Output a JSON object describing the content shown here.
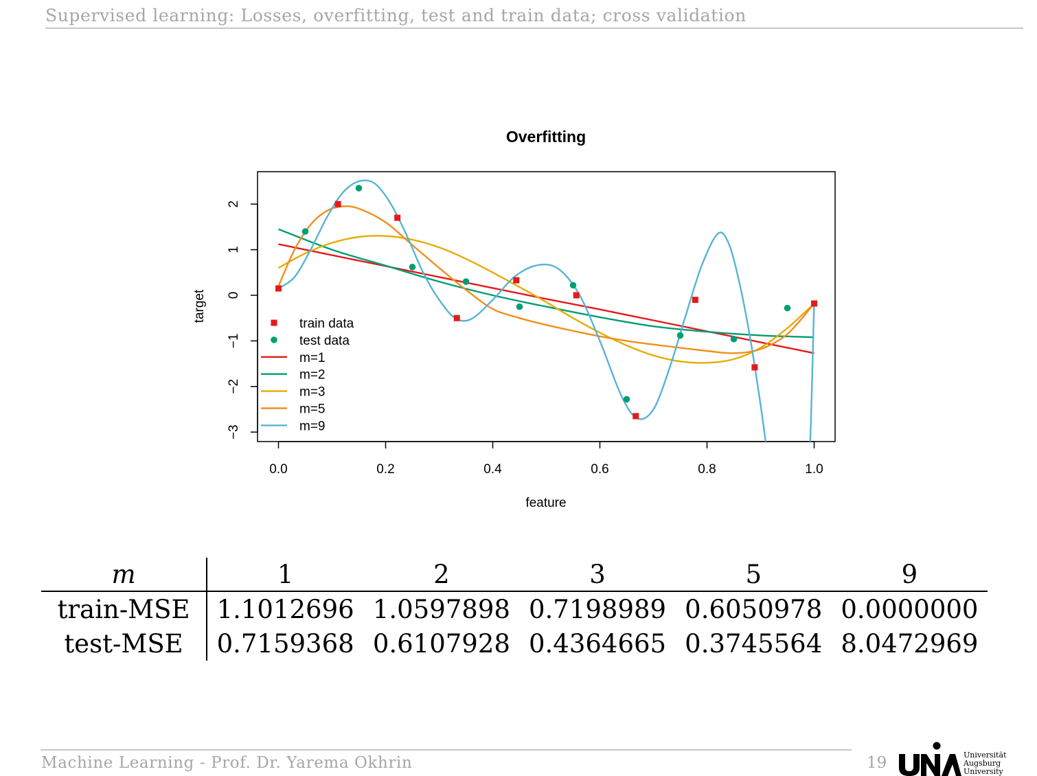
{
  "header": {
    "title": "Supervised learning: Losses, overfitting, test and train data; cross validation"
  },
  "chart_data": {
    "type": "scatter",
    "title": "Overfitting",
    "xlabel": "feature",
    "ylabel": "target",
    "xlim": [
      0.0,
      1.0
    ],
    "ylim": [
      -3,
      2.5
    ],
    "xticks": [
      "0.0",
      "0.2",
      "0.4",
      "0.6",
      "0.8",
      "1.0"
    ],
    "yticks": [
      "2",
      "1",
      "0",
      "−1",
      "−2",
      "−3"
    ],
    "grid": false,
    "legend_position": "bottom-left",
    "train_data": {
      "name": "train data",
      "color": "#e41a1c",
      "x": [
        0.0,
        0.111,
        0.222,
        0.333,
        0.444,
        0.556,
        0.667,
        0.778,
        0.889,
        1.0
      ],
      "y": [
        0.15,
        2.0,
        1.7,
        -0.5,
        0.33,
        0.0,
        -2.65,
        -0.1,
        -1.58,
        -0.18
      ]
    },
    "test_data": {
      "name": "test data",
      "color": "#009e73",
      "x": [
        0.05,
        0.15,
        0.25,
        0.35,
        0.45,
        0.55,
        0.65,
        0.75,
        0.85,
        0.95
      ],
      "y": [
        1.4,
        2.35,
        0.62,
        0.3,
        -0.25,
        0.22,
        -2.28,
        -0.88,
        -0.96,
        -0.28
      ]
    },
    "fits": [
      {
        "name": "m=1",
        "color": "#e41a1c",
        "x": [
          0,
          0.1,
          0.2,
          0.3,
          0.4,
          0.5,
          0.6,
          0.7,
          0.8,
          0.9,
          1.0
        ],
        "y": [
          1.12,
          0.88,
          0.64,
          0.4,
          0.16,
          -0.08,
          -0.31,
          -0.55,
          -0.79,
          -1.03,
          -1.27
        ]
      },
      {
        "name": "m=2",
        "color": "#009e73",
        "x": [
          0,
          0.1,
          0.2,
          0.3,
          0.4,
          0.5,
          0.6,
          0.7,
          0.8,
          0.9,
          1.0
        ],
        "y": [
          1.45,
          1.0,
          0.65,
          0.3,
          0.0,
          -0.25,
          -0.48,
          -0.68,
          -0.8,
          -0.88,
          -0.92
        ]
      },
      {
        "name": "m=3",
        "color": "#e6ab02",
        "x": [
          0,
          0.05,
          0.1,
          0.15,
          0.2,
          0.25,
          0.3,
          0.35,
          0.4,
          0.45,
          0.5,
          0.55,
          0.6,
          0.65,
          0.7,
          0.75,
          0.8,
          0.85,
          0.9,
          0.95,
          1.0
        ],
        "y": [
          0.6,
          0.92,
          1.15,
          1.28,
          1.3,
          1.22,
          1.05,
          0.8,
          0.5,
          0.18,
          -0.15,
          -0.5,
          -0.82,
          -1.1,
          -1.32,
          -1.45,
          -1.48,
          -1.4,
          -1.15,
          -0.72,
          -0.18
        ]
      },
      {
        "name": "m=5",
        "color": "#f28e1c",
        "x": [
          0,
          0.03,
          0.06,
          0.09,
          0.12,
          0.15,
          0.2,
          0.25,
          0.3,
          0.35,
          0.4,
          0.45,
          0.5,
          0.55,
          0.6,
          0.65,
          0.7,
          0.75,
          0.8,
          0.85,
          0.9,
          0.95,
          1.0
        ],
        "y": [
          0.2,
          1.0,
          1.55,
          1.85,
          1.95,
          1.9,
          1.6,
          1.1,
          0.6,
          0.12,
          -0.3,
          -0.5,
          -0.65,
          -0.78,
          -0.9,
          -1.0,
          -1.08,
          -1.15,
          -1.22,
          -1.27,
          -1.18,
          -0.85,
          -0.18
        ]
      },
      {
        "name": "m=9",
        "color": "#56b4d3",
        "x": [
          0,
          0.03,
          0.06,
          0.09,
          0.12,
          0.15,
          0.18,
          0.21,
          0.24,
          0.27,
          0.3,
          0.33,
          0.36,
          0.4,
          0.44,
          0.48,
          0.52,
          0.56,
          0.6,
          0.64,
          0.67,
          0.7,
          0.73,
          0.76,
          0.79,
          0.82,
          0.84,
          0.86,
          0.88,
          0.9,
          0.92,
          0.95,
          0.975,
          0.99,
          1.0
        ],
        "y": [
          0.15,
          0.4,
          1.0,
          1.7,
          2.25,
          2.5,
          2.45,
          2.0,
          1.3,
          0.5,
          -0.1,
          -0.5,
          -0.52,
          -0.1,
          0.4,
          0.65,
          0.6,
          0.05,
          -1.0,
          -2.2,
          -2.7,
          -2.5,
          -1.6,
          -0.45,
          0.65,
          1.35,
          1.15,
          0.3,
          -0.9,
          -2.4,
          -4.0,
          -5.5,
          -6.0,
          -4.0,
          -0.18
        ]
      }
    ]
  },
  "table": {
    "m_label": "m",
    "m_values": [
      "1",
      "2",
      "3",
      "5",
      "9"
    ],
    "rows": [
      {
        "label": "train-MSE",
        "values": [
          "1.1012696",
          "1.0597898",
          "0.7198989",
          "0.6050978",
          "0.0000000"
        ]
      },
      {
        "label": "test-MSE",
        "values": [
          "0.7159368",
          "0.6107928",
          "0.4364665",
          "0.3745564",
          "8.0472969"
        ]
      }
    ]
  },
  "footer": {
    "left": "Machine Learning   -   Prof.  Dr.  Yarema Okhrin",
    "page": "19",
    "logo_text": [
      "Universität",
      "Augsburg",
      "University"
    ]
  }
}
